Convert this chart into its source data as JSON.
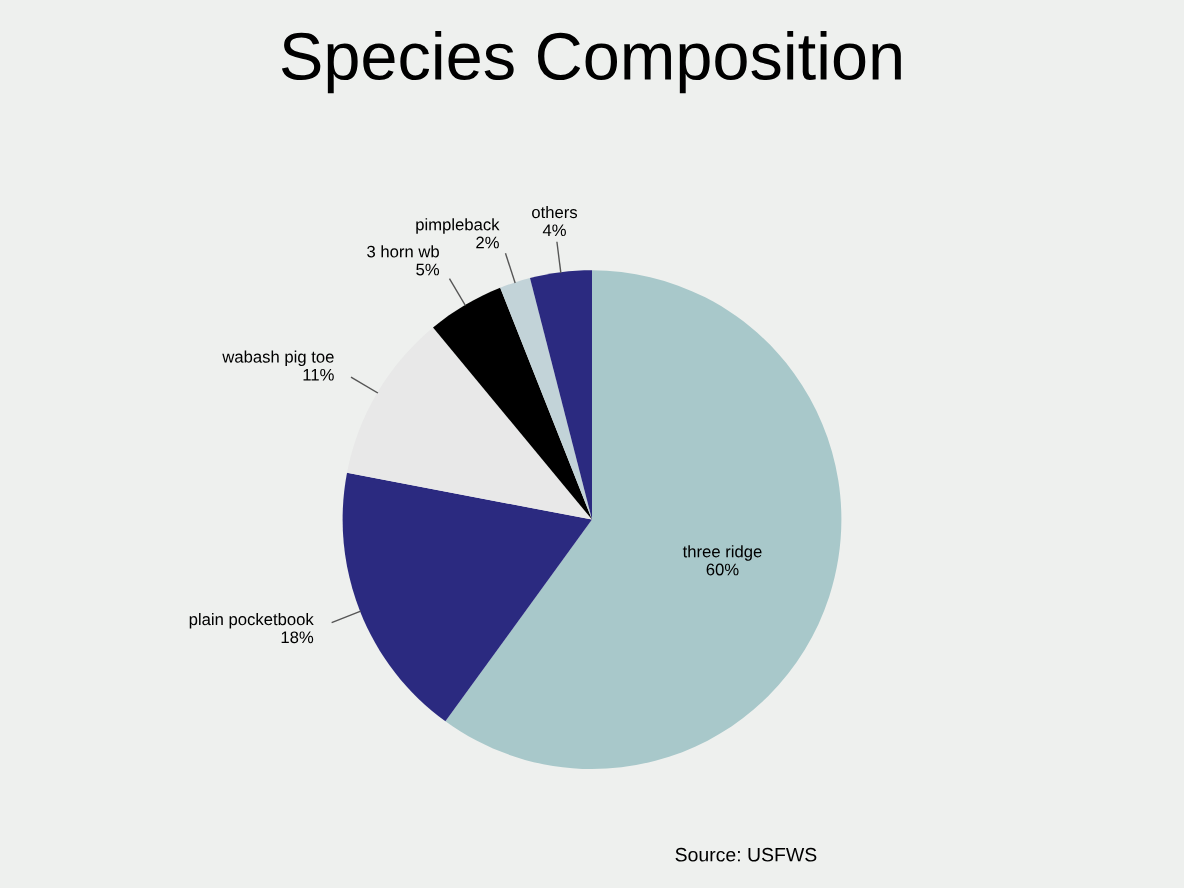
{
  "chart_data": {
    "type": "pie",
    "title": "Species Composition",
    "categories": [
      "three ridge",
      "plain pocketbook",
      "wabash pig toe",
      "3 horn wb",
      "pimpleback",
      "others"
    ],
    "values": [
      60,
      18,
      11,
      5,
      2,
      4
    ],
    "value_labels": [
      "60%",
      "18%",
      "11%",
      "5%",
      "2%",
      "4%"
    ],
    "colors": [
      "#a8c8ca",
      "#2b2a80",
      "#e8e8e8",
      "#000000",
      "#c2d3d8",
      "#2b2a80"
    ],
    "legend": false,
    "annotations": [
      "Source: USFWS"
    ]
  }
}
